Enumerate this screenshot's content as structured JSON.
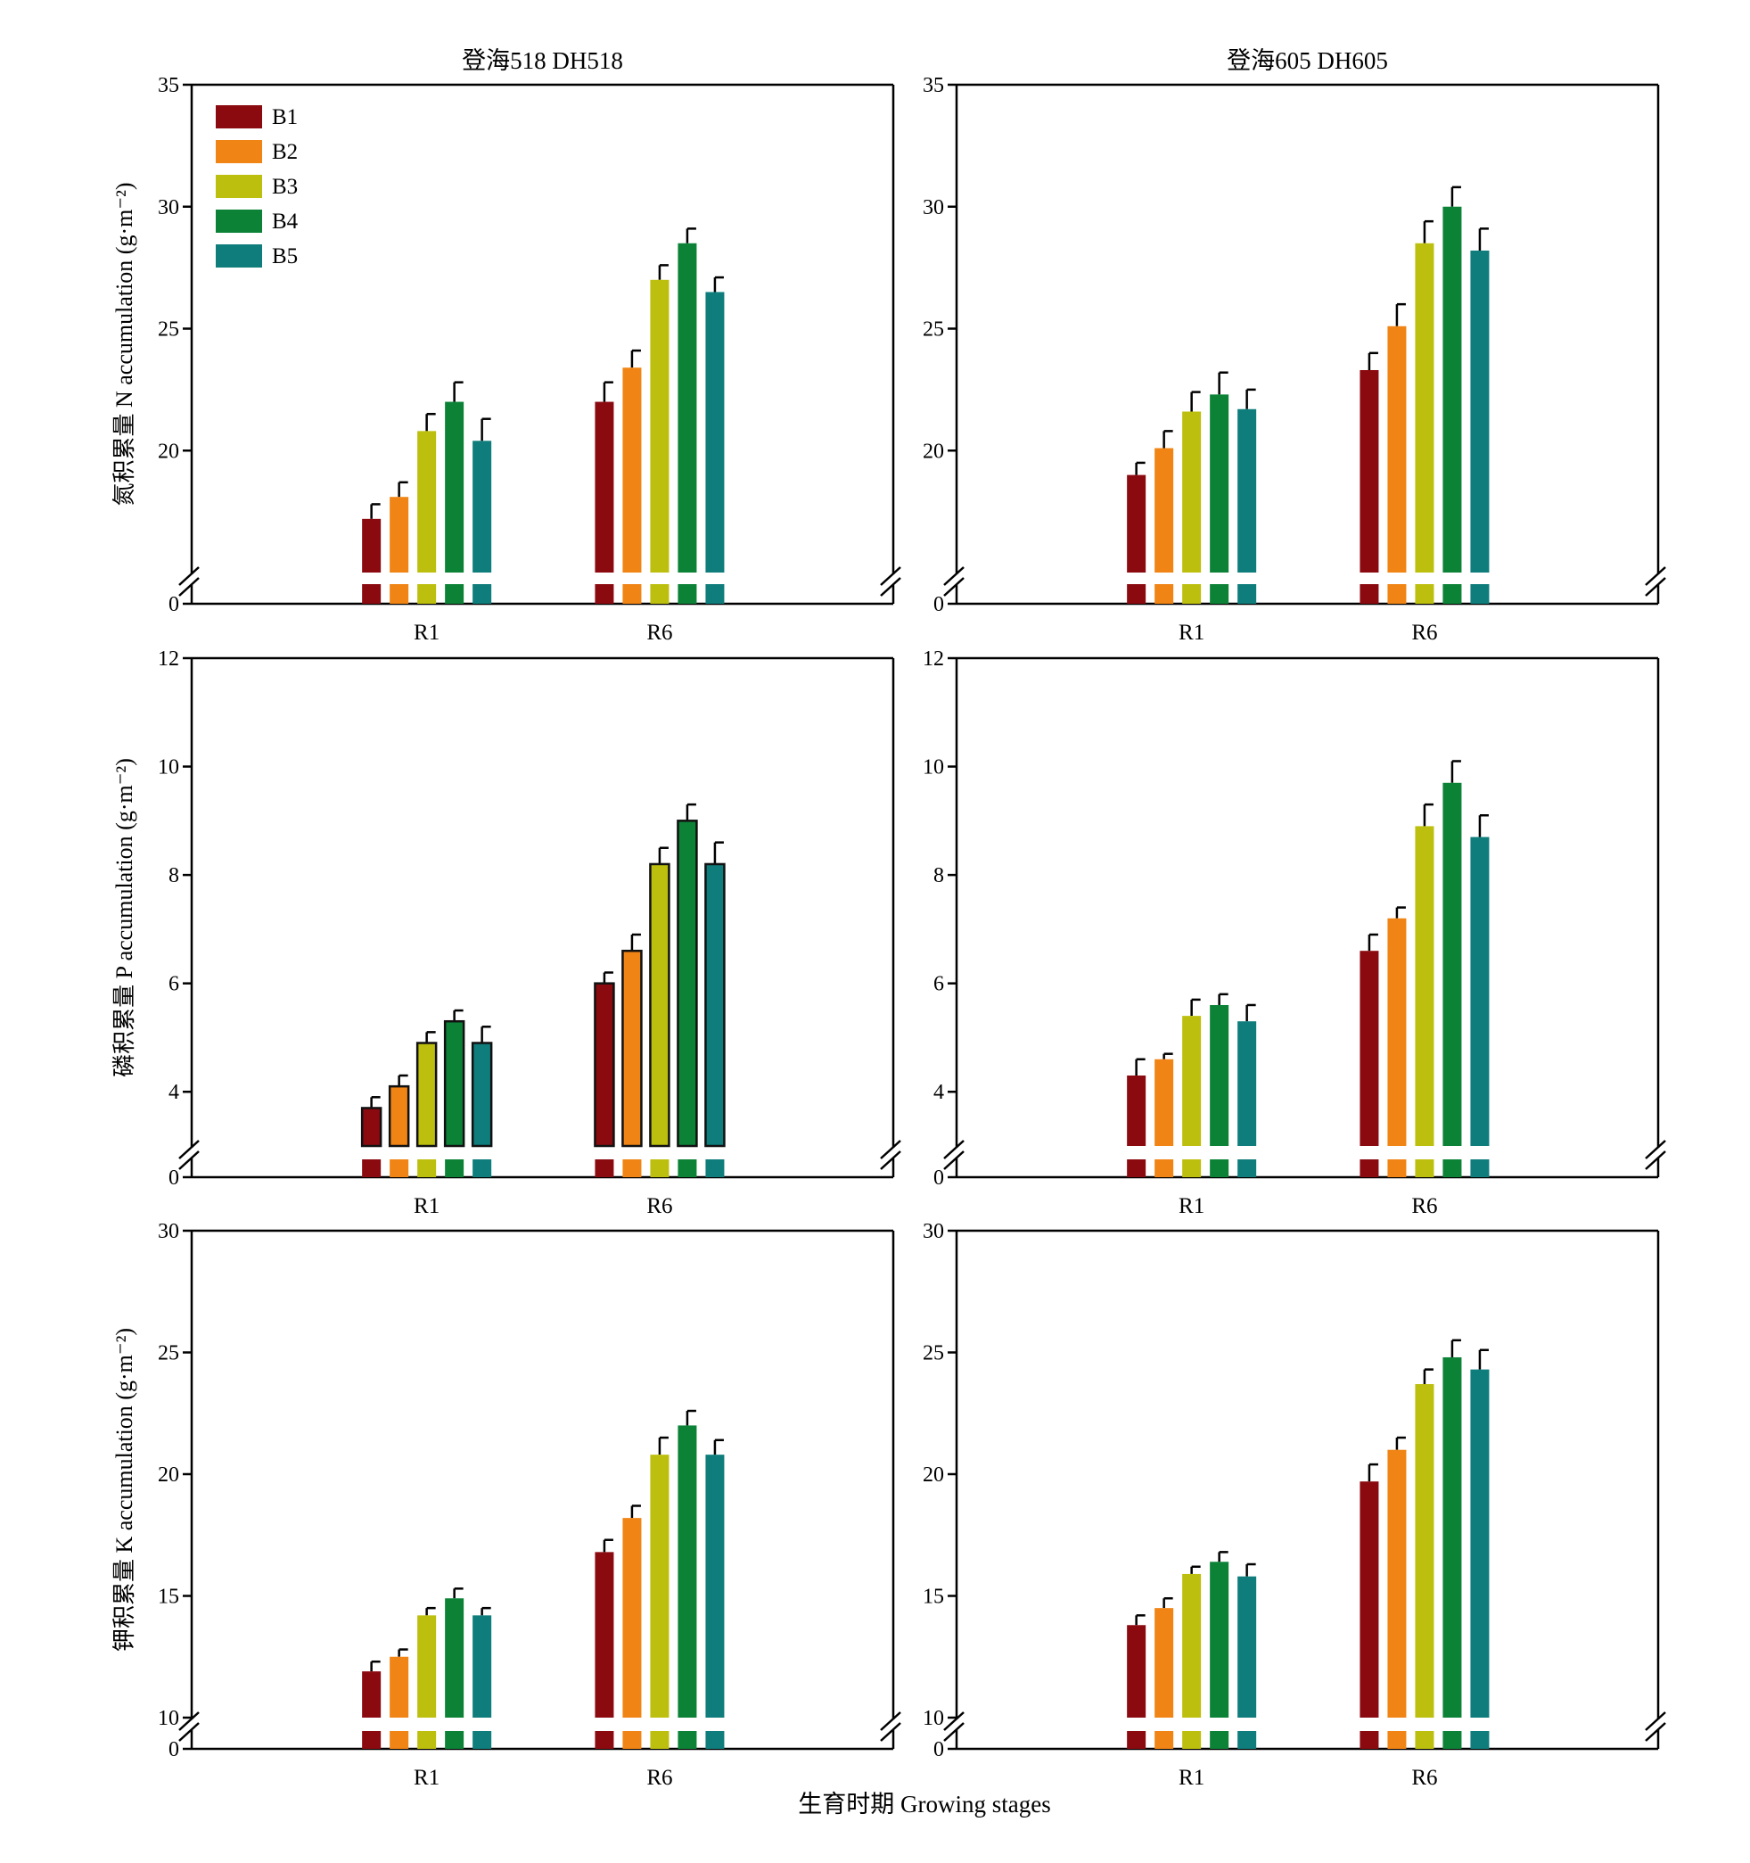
{
  "colors": {
    "B1": "#8B0A10",
    "B2": "#F08414",
    "B3": "#BDBF0E",
    "B4": "#0B8236",
    "B5": "#0E7D7B",
    "axis": "#000000"
  },
  "x_axis_title": "生育时期 Growing stages",
  "column_titles": [
    "登海518 DH518",
    "登海605 DH605"
  ],
  "row_y_titles": [
    "氮积累量 N accumulation (g·m⁻²)",
    "磷积累量 P accumulation (g·m⁻²)",
    "钾积累量 K accumulation (g·m⁻²)"
  ],
  "chart_data": [
    {
      "type": "bar",
      "title": "登海518 DH518",
      "ylabel": "氮积累量 N accumulation (g·m⁻²)",
      "categories": [
        "R1",
        "R6"
      ],
      "ylim": [
        0,
        35
      ],
      "axis_break": [
        0,
        15
      ],
      "yticks": [
        "0",
        "20",
        "25",
        "30",
        "35"
      ],
      "legend": {
        "position": "top-left",
        "entries": [
          "B1",
          "B2",
          "B3",
          "B4",
          "B5"
        ]
      },
      "series": [
        {
          "name": "B1",
          "values": [
            17.2,
            22.0
          ],
          "errors": [
            0.6,
            0.8
          ]
        },
        {
          "name": "B2",
          "values": [
            18.1,
            23.4
          ],
          "errors": [
            0.6,
            0.7
          ]
        },
        {
          "name": "B3",
          "values": [
            20.8,
            27.0
          ],
          "errors": [
            0.7,
            0.6
          ]
        },
        {
          "name": "B4",
          "values": [
            22.0,
            28.5
          ],
          "errors": [
            0.8,
            0.6
          ]
        },
        {
          "name": "B5",
          "values": [
            20.4,
            26.5
          ],
          "errors": [
            0.9,
            0.6
          ]
        }
      ]
    },
    {
      "type": "bar",
      "title": "登海605 DH605",
      "ylabel": "",
      "categories": [
        "R1",
        "R6"
      ],
      "ylim": [
        0,
        35
      ],
      "axis_break": [
        0,
        15
      ],
      "yticks": [
        "0",
        "20",
        "25",
        "30",
        "35"
      ],
      "series": [
        {
          "name": "B1",
          "values": [
            19.0,
            23.3
          ],
          "errors": [
            0.5,
            0.7
          ]
        },
        {
          "name": "B2",
          "values": [
            20.1,
            25.1
          ],
          "errors": [
            0.7,
            0.9
          ]
        },
        {
          "name": "B3",
          "values": [
            21.6,
            28.5
          ],
          "errors": [
            0.8,
            0.9
          ]
        },
        {
          "name": "B4",
          "values": [
            22.3,
            30.0
          ],
          "errors": [
            0.9,
            0.8
          ]
        },
        {
          "name": "B5",
          "values": [
            21.7,
            28.2
          ],
          "errors": [
            0.8,
            0.9
          ]
        }
      ]
    },
    {
      "type": "bar",
      "title": "",
      "ylabel": "磷积累量 P accumulation (g·m⁻²)",
      "categories": [
        "R1",
        "R6"
      ],
      "ylim": [
        0,
        12
      ],
      "axis_break": [
        0,
        3
      ],
      "yticks": [
        "0",
        "4",
        "6",
        "8",
        "10",
        "12"
      ],
      "series": [
        {
          "name": "B1",
          "values": [
            3.7,
            6.0
          ],
          "errors": [
            0.2,
            0.2
          ]
        },
        {
          "name": "B2",
          "values": [
            4.1,
            6.6
          ],
          "errors": [
            0.2,
            0.3
          ]
        },
        {
          "name": "B3",
          "values": [
            4.9,
            8.2
          ],
          "errors": [
            0.2,
            0.3
          ]
        },
        {
          "name": "B4",
          "values": [
            5.3,
            9.0
          ],
          "errors": [
            0.2,
            0.3
          ]
        },
        {
          "name": "B5",
          "values": [
            4.9,
            8.2
          ],
          "errors": [
            0.3,
            0.4
          ]
        }
      ]
    },
    {
      "type": "bar",
      "title": "",
      "ylabel": "",
      "categories": [
        "R1",
        "R6"
      ],
      "ylim": [
        0,
        12
      ],
      "axis_break": [
        0,
        3
      ],
      "yticks": [
        "0",
        "4",
        "6",
        "8",
        "10",
        "12"
      ],
      "series": [
        {
          "name": "B1",
          "values": [
            4.3,
            6.6
          ],
          "errors": [
            0.3,
            0.3
          ]
        },
        {
          "name": "B2",
          "values": [
            4.6,
            7.2
          ],
          "errors": [
            0.1,
            0.2
          ]
        },
        {
          "name": "B3",
          "values": [
            5.4,
            8.9
          ],
          "errors": [
            0.3,
            0.4
          ]
        },
        {
          "name": "B4",
          "values": [
            5.6,
            9.7
          ],
          "errors": [
            0.2,
            0.4
          ]
        },
        {
          "name": "B5",
          "values": [
            5.3,
            8.7
          ],
          "errors": [
            0.3,
            0.4
          ]
        }
      ]
    },
    {
      "type": "bar",
      "title": "",
      "ylabel": "钾积累量 K accumulation (g·m⁻²)",
      "categories": [
        "R1",
        "R6"
      ],
      "ylim": [
        0,
        30
      ],
      "axis_break": [
        0,
        10
      ],
      "yticks": [
        "0",
        "10",
        "15",
        "20",
        "25",
        "30"
      ],
      "series": [
        {
          "name": "B1",
          "values": [
            11.9,
            16.8
          ],
          "errors": [
            0.4,
            0.5
          ]
        },
        {
          "name": "B2",
          "values": [
            12.5,
            18.2
          ],
          "errors": [
            0.3,
            0.5
          ]
        },
        {
          "name": "B3",
          "values": [
            14.2,
            20.8
          ],
          "errors": [
            0.3,
            0.7
          ]
        },
        {
          "name": "B4",
          "values": [
            14.9,
            22.0
          ],
          "errors": [
            0.4,
            0.6
          ]
        },
        {
          "name": "B5",
          "values": [
            14.2,
            20.8
          ],
          "errors": [
            0.3,
            0.6
          ]
        }
      ]
    },
    {
      "type": "bar",
      "title": "",
      "ylabel": "",
      "categories": [
        "R1",
        "R6"
      ],
      "ylim": [
        0,
        30
      ],
      "axis_break": [
        0,
        10
      ],
      "yticks": [
        "0",
        "10",
        "15",
        "20",
        "25",
        "30"
      ],
      "series": [
        {
          "name": "B1",
          "values": [
            13.8,
            19.7
          ],
          "errors": [
            0.4,
            0.7
          ]
        },
        {
          "name": "B2",
          "values": [
            14.5,
            21.0
          ],
          "errors": [
            0.4,
            0.5
          ]
        },
        {
          "name": "B3",
          "values": [
            15.9,
            23.7
          ],
          "errors": [
            0.3,
            0.6
          ]
        },
        {
          "name": "B4",
          "values": [
            16.4,
            24.8
          ],
          "errors": [
            0.4,
            0.7
          ]
        },
        {
          "name": "B5",
          "values": [
            15.8,
            24.3
          ],
          "errors": [
            0.5,
            0.8
          ]
        }
      ]
    }
  ]
}
